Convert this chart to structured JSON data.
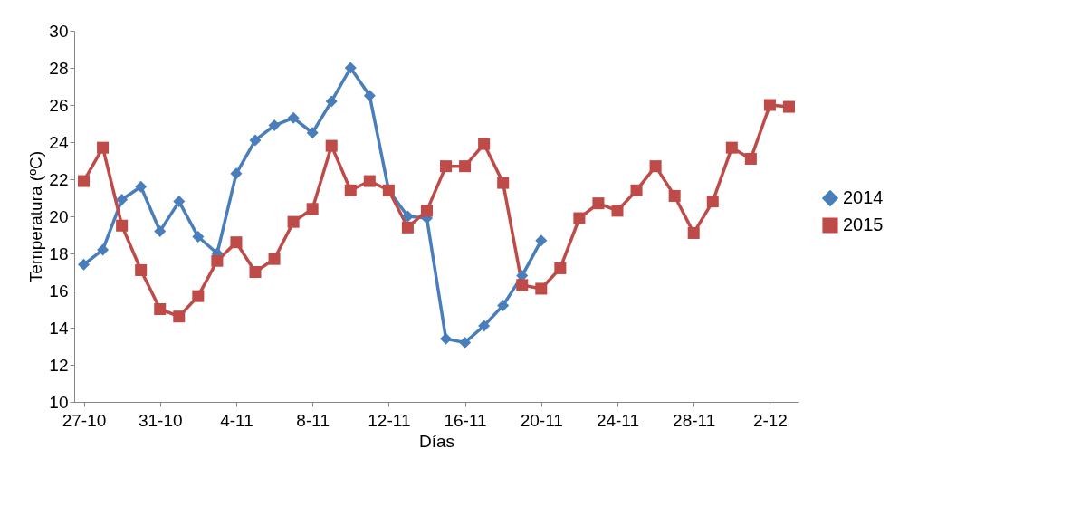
{
  "chart_data": {
    "type": "line",
    "xlabel": "Días",
    "ylabel": "Temperatura (ºC)",
    "categories": [
      "27-10",
      null,
      null,
      null,
      "31-10",
      null,
      null,
      null,
      "4-11",
      null,
      null,
      null,
      "8-11",
      null,
      null,
      null,
      "12-11",
      null,
      null,
      null,
      "16-11",
      null,
      null,
      null,
      "20-11",
      null,
      null,
      null,
      "24-11",
      null,
      null,
      null,
      "28-11",
      null,
      null,
      null,
      "2-12",
      null
    ],
    "ylim": [
      10,
      30
    ],
    "yticks": [
      10,
      12,
      14,
      16,
      18,
      20,
      22,
      24,
      26,
      28,
      30
    ],
    "grid": false,
    "legend": "right",
    "line_style": "solid",
    "series": [
      {
        "name": "2014",
        "color": "#4a7ebb",
        "marker": "diamond",
        "values": [
          17.4,
          18.2,
          20.9,
          21.6,
          19.2,
          20.8,
          18.9,
          18.0,
          22.3,
          24.1,
          24.9,
          25.3,
          24.5,
          26.2,
          28.0,
          26.5,
          21.4,
          20.0,
          19.9,
          13.4,
          13.2,
          14.1,
          15.2,
          16.8,
          18.7,
          null,
          null,
          null,
          null,
          null,
          null,
          null,
          null,
          null,
          null,
          null,
          null,
          null
        ]
      },
      {
        "name": "2015",
        "color": "#be4b48",
        "marker": "square",
        "values": [
          21.9,
          23.7,
          19.5,
          17.1,
          15.0,
          14.6,
          15.7,
          17.6,
          18.6,
          17.0,
          17.7,
          19.7,
          20.4,
          23.8,
          21.4,
          21.9,
          21.4,
          19.4,
          20.3,
          22.7,
          22.7,
          23.9,
          21.8,
          16.3,
          16.1,
          17.2,
          19.9,
          20.7,
          20.3,
          21.4,
          22.7,
          21.1,
          19.1,
          20.8,
          23.7,
          23.1,
          26.0,
          25.9
        ]
      }
    ]
  }
}
